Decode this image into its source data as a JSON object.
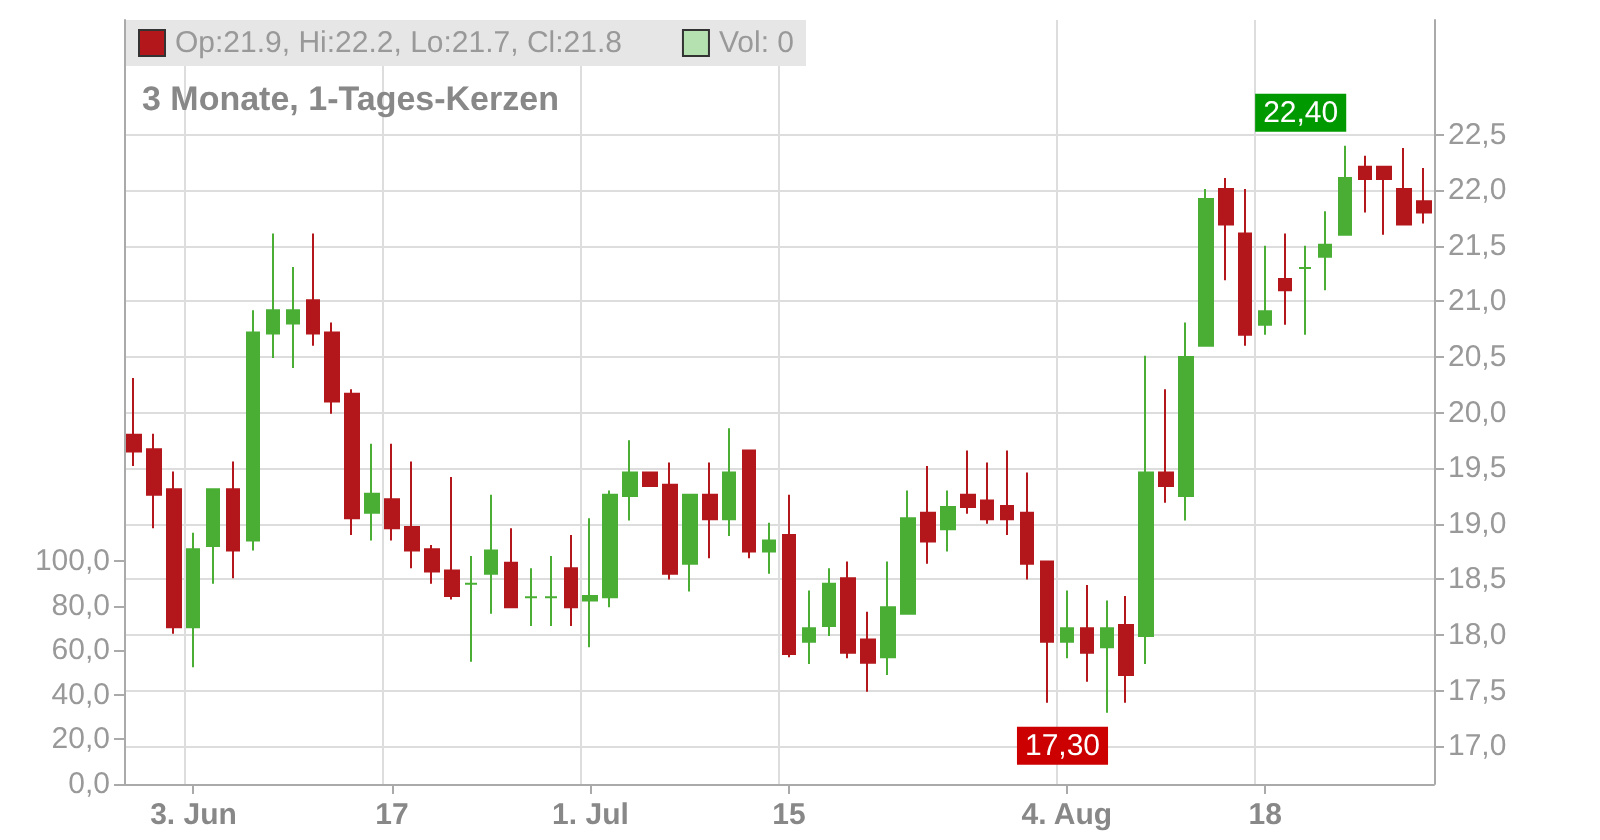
{
  "chart_data": {
    "type": "candlestick",
    "title": "3 Monate, 1-Tages-Kerzen",
    "categories": [
      null,
      null,
      null,
      "3. Jun",
      null,
      null,
      null,
      null,
      null,
      null,
      null,
      null,
      null,
      "17",
      null,
      null,
      null,
      null,
      null,
      null,
      null,
      null,
      null,
      "1. Jul",
      null,
      null,
      null,
      null,
      null,
      null,
      null,
      null,
      null,
      "15",
      null,
      null,
      null,
      null,
      null,
      null,
      null,
      null,
      null,
      null,
      null,
      null,
      null,
      "4. Aug",
      null,
      null,
      null,
      null,
      null,
      null,
      null,
      null,
      null,
      "18",
      null,
      null,
      null,
      null,
      null,
      null,
      null,
      null
    ],
    "series": [
      {
        "name": "Op:21.9, Hi:22.2, Lo:21.7, Cl:21.8",
        "color": "#b3171b",
        "colors": [
          "#b3171b",
          "#b3171b",
          "#b3171b",
          "#4aae35",
          "#4aae35",
          "#b3171b",
          "#4aae35",
          "#4aae35",
          "#4aae35",
          "#b3171b",
          "#b3171b",
          "#b3171b",
          "#4aae35",
          "#b3171b",
          "#b3171b",
          "#b3171b",
          "#b3171b",
          "#4aae35",
          "#4aae35",
          "#b3171b",
          "#4aae35",
          "#4aae35",
          "#b3171b",
          "#4aae35",
          "#4aae35",
          "#4aae35",
          "#b3171b",
          "#b3171b",
          "#4aae35",
          "#b3171b",
          "#4aae35",
          "#b3171b",
          "#4aae35",
          "#b3171b",
          "#4aae35",
          "#4aae35",
          "#b3171b",
          "#b3171b",
          "#4aae35",
          "#4aae35",
          "#b3171b",
          "#4aae35",
          "#b3171b",
          "#b3171b",
          "#b3171b",
          "#b3171b",
          "#b3171b",
          "#4aae35",
          "#b3171b",
          "#4aae35",
          "#b3171b",
          "#4aae35",
          "#b3171b",
          "#4aae35",
          "#4aae35",
          "#b3171b",
          "#b3171b",
          "#4aae35",
          "#b3171b",
          "#4aae35",
          "#4aae35",
          "#4aae35",
          "#b3171b",
          "#b3171b",
          "#b3171b",
          "#b3171b"
        ],
        "ohlc": [
          [
            19.8,
            20.31,
            19.52,
            19.65
          ],
          [
            19.67,
            19.81,
            18.96,
            19.26
          ],
          [
            19.31,
            19.47,
            18.01,
            18.07
          ],
          [
            18.07,
            18.92,
            17.71,
            18.77
          ],
          [
            18.8,
            19.31,
            18.46,
            19.31
          ],
          [
            19.31,
            19.56,
            18.51,
            18.76
          ],
          [
            18.85,
            20.92,
            18.76,
            20.72
          ],
          [
            20.71,
            21.61,
            20.49,
            20.92
          ],
          [
            20.8,
            21.31,
            20.4,
            20.92
          ],
          [
            21.01,
            21.61,
            20.6,
            20.71
          ],
          [
            20.72,
            20.81,
            19.99,
            20.1
          ],
          [
            20.17,
            20.21,
            18.9,
            19.05
          ],
          [
            19.1,
            19.72,
            18.85,
            19.27
          ],
          [
            19.22,
            19.72,
            18.85,
            18.96
          ],
          [
            18.97,
            19.56,
            18.6,
            18.76
          ],
          [
            18.77,
            18.81,
            18.46,
            18.57
          ],
          [
            18.58,
            19.42,
            18.32,
            18.35
          ],
          [
            18.46,
            18.71,
            17.76,
            18.46
          ],
          [
            18.55,
            19.26,
            18.19,
            18.76
          ],
          [
            18.65,
            18.96,
            18.25,
            18.25
          ],
          [
            18.34,
            18.6,
            18.08,
            18.34
          ],
          [
            18.34,
            18.71,
            18.08,
            18.34
          ],
          [
            18.6,
            18.9,
            18.08,
            18.25
          ],
          [
            18.31,
            19.05,
            17.89,
            18.35
          ],
          [
            18.34,
            19.3,
            18.25,
            19.26
          ],
          [
            19.25,
            19.75,
            19.03,
            19.46
          ],
          [
            19.46,
            19.46,
            19.34,
            19.34
          ],
          [
            19.35,
            19.55,
            18.5,
            18.55
          ],
          [
            18.64,
            19.26,
            18.39,
            19.26
          ],
          [
            19.26,
            19.55,
            18.69,
            19.04
          ],
          [
            19.04,
            19.86,
            18.89,
            19.46
          ],
          [
            19.66,
            19.66,
            18.69,
            18.75
          ],
          [
            18.75,
            19.01,
            18.55,
            18.85
          ],
          [
            18.9,
            19.26,
            17.8,
            17.83
          ],
          [
            17.94,
            18.4,
            17.74,
            18.06
          ],
          [
            18.08,
            18.6,
            17.99,
            18.46
          ],
          [
            18.51,
            18.66,
            17.79,
            17.84
          ],
          [
            17.96,
            18.21,
            17.49,
            17.75
          ],
          [
            17.8,
            18.66,
            17.64,
            18.25
          ],
          [
            18.19,
            19.3,
            18.19,
            19.05
          ],
          [
            19.1,
            19.52,
            18.64,
            18.84
          ],
          [
            18.95,
            19.3,
            18.75,
            19.15
          ],
          [
            19.26,
            19.66,
            19.09,
            19.15
          ],
          [
            19.21,
            19.55,
            19.0,
            19.04
          ],
          [
            19.16,
            19.66,
            18.9,
            19.04
          ],
          [
            19.1,
            19.46,
            18.5,
            18.64
          ],
          [
            18.66,
            18.66,
            17.39,
            17.94
          ],
          [
            17.94,
            18.4,
            17.79,
            18.06
          ],
          [
            18.06,
            18.45,
            17.58,
            17.84
          ],
          [
            17.89,
            18.31,
            17.3,
            18.06
          ],
          [
            18.09,
            18.35,
            17.39,
            17.64
          ],
          [
            17.99,
            20.51,
            17.74,
            19.46
          ],
          [
            19.46,
            20.21,
            19.19,
            19.34
          ],
          [
            19.25,
            20.81,
            19.03,
            20.5
          ],
          [
            20.6,
            22.01,
            20.6,
            21.92
          ],
          [
            22.01,
            22.11,
            21.19,
            21.69
          ],
          [
            21.61,
            22.01,
            20.6,
            20.7
          ],
          [
            20.79,
            21.5,
            20.7,
            20.91
          ],
          [
            21.2,
            21.61,
            20.79,
            21.1
          ],
          [
            21.3,
            21.5,
            20.7,
            21.3
          ],
          [
            21.4,
            21.81,
            21.1,
            21.51
          ],
          [
            21.6,
            22.4,
            21.6,
            22.11
          ],
          [
            22.21,
            22.31,
            21.8,
            22.1
          ],
          [
            22.21,
            22.21,
            21.6,
            22.1
          ],
          [
            22.01,
            22.38,
            21.69,
            21.69
          ],
          [
            21.9,
            22.2,
            21.7,
            21.8
          ]
        ]
      },
      {
        "type": "bar",
        "name": "Vol: 0",
        "color": "#b5e0b0",
        "axis": "y2",
        "values": [
          0,
          0,
          0,
          0,
          0,
          0,
          0,
          0,
          0,
          0,
          0,
          0,
          0,
          0,
          0,
          0,
          0,
          0,
          0,
          0,
          0,
          0,
          0,
          0,
          0,
          0,
          0,
          0,
          0,
          0,
          0,
          0,
          0,
          0,
          0,
          0,
          0,
          0,
          0,
          0,
          0,
          0,
          0,
          0,
          0,
          0,
          0,
          0,
          0,
          0,
          0,
          0,
          0,
          0,
          0,
          0,
          0,
          0,
          0,
          0,
          0,
          0,
          0,
          0,
          0,
          0
        ]
      }
    ],
    "ylim": [
      16.66,
      23.53
    ],
    "yticks": [
      {
        "value": 17,
        "label": "17,0"
      },
      {
        "value": 17.5,
        "label": "17,5"
      },
      {
        "value": 18,
        "label": "18,0"
      },
      {
        "value": 18.5,
        "label": "18,5"
      },
      {
        "value": 19,
        "label": "19,0"
      },
      {
        "value": 19.5,
        "label": "19,5"
      },
      {
        "value": 20,
        "label": "20,0"
      },
      {
        "value": 20.5,
        "label": "20,5"
      },
      {
        "value": 21,
        "label": "21,0"
      },
      {
        "value": 21.5,
        "label": "21,5"
      },
      {
        "value": 22,
        "label": "22,0"
      },
      {
        "value": 22.5,
        "label": "22,5"
      }
    ],
    "y2lim": [
      0,
      343
    ],
    "y2ticks": [
      {
        "value": 0,
        "label": "0,0"
      },
      {
        "value": 20,
        "label": "20,0"
      },
      {
        "value": 40,
        "label": "40,0"
      },
      {
        "value": 60,
        "label": "60,0"
      },
      {
        "value": 80,
        "label": "80,0"
      },
      {
        "value": 100,
        "label": "100,0"
      }
    ],
    "annotations": [
      "17,30",
      "22,40"
    ],
    "grid": true,
    "legend": "top left"
  }
}
